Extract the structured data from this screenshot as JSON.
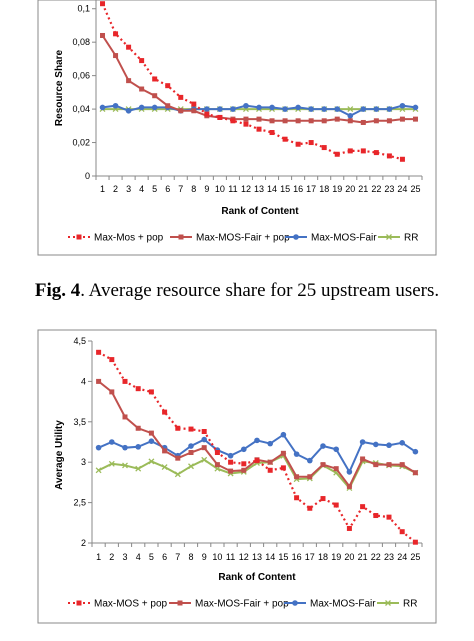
{
  "caption": {
    "label": "Fig. 4",
    "text": ". Average resource share for 25 upstream users."
  },
  "chart_data": [
    {
      "type": "line",
      "title": "",
      "xlabel": "Rank of Content",
      "ylabel": "Resource Share",
      "x": [
        1,
        2,
        3,
        4,
        5,
        6,
        7,
        8,
        9,
        10,
        11,
        12,
        13,
        14,
        15,
        16,
        17,
        18,
        19,
        20,
        21,
        22,
        23,
        24,
        25
      ],
      "ylim": [
        0,
        0.11
      ],
      "yticks": [
        "0",
        "0,02",
        "0,04",
        "0,06",
        "0,08",
        "0,1"
      ],
      "ytick_values": [
        0,
        0.02,
        0.04,
        0.06,
        0.08,
        0.1
      ],
      "grid": false,
      "legend_position": "bottom",
      "series": [
        {
          "name": "Max-Mos + pop",
          "color": "#e8262a",
          "style": "dotted",
          "marker": "square",
          "values": [
            0.103,
            0.085,
            0.077,
            0.069,
            0.058,
            0.054,
            0.047,
            0.043,
            0.037,
            0.035,
            0.033,
            0.031,
            0.028,
            0.026,
            0.022,
            0.019,
            0.02,
            0.017,
            0.013,
            0.015,
            0.015,
            0.014,
            0.012,
            0.01,
            null
          ]
        },
        {
          "name": "Max-MOS-Fair + pop",
          "color": "#c0504d",
          "style": "solid",
          "marker": "square",
          "values": [
            0.084,
            0.072,
            0.057,
            0.052,
            0.048,
            0.042,
            0.039,
            0.039,
            0.036,
            0.035,
            0.034,
            0.034,
            0.034,
            0.033,
            0.033,
            0.033,
            0.033,
            0.033,
            0.034,
            0.033,
            0.032,
            0.033,
            0.033,
            0.034,
            0.034
          ]
        },
        {
          "name": "Max-MOS-Fair",
          "color": "#4472c4",
          "style": "solid",
          "marker": "circle",
          "values": [
            0.041,
            0.042,
            0.039,
            0.041,
            0.041,
            0.041,
            0.039,
            0.04,
            0.04,
            0.04,
            0.04,
            0.042,
            0.041,
            0.041,
            0.04,
            0.041,
            0.04,
            0.04,
            0.04,
            0.036,
            0.04,
            0.04,
            0.04,
            0.042,
            0.041
          ]
        },
        {
          "name": "RR",
          "color": "#9bbb59",
          "style": "solid",
          "marker": "x",
          "values": [
            0.04,
            0.04,
            0.04,
            0.04,
            0.04,
            0.04,
            0.04,
            0.04,
            0.04,
            0.04,
            0.04,
            0.04,
            0.04,
            0.04,
            0.04,
            0.04,
            0.04,
            0.04,
            0.04,
            0.04,
            0.04,
            0.04,
            0.04,
            0.04,
            0.04
          ]
        }
      ]
    },
    {
      "type": "line",
      "title": "",
      "xlabel": "Rank of Content",
      "ylabel": "Average Utility",
      "x": [
        1,
        2,
        3,
        4,
        5,
        6,
        7,
        8,
        9,
        10,
        11,
        12,
        13,
        14,
        15,
        16,
        17,
        18,
        19,
        20,
        21,
        22,
        23,
        24,
        25
      ],
      "ylim": [
        2,
        4.5
      ],
      "yticks": [
        "2",
        "2,5",
        "3",
        "3,5",
        "4",
        "4,5"
      ],
      "ytick_values": [
        2,
        2.5,
        3,
        3.5,
        4,
        4.5
      ],
      "grid": false,
      "legend_position": "bottom",
      "series": [
        {
          "name": "Max-MOS + pop",
          "color": "#e8262a",
          "style": "dotted",
          "marker": "square",
          "values": [
            4.36,
            4.27,
            4.0,
            3.91,
            3.87,
            3.62,
            3.42,
            3.41,
            3.38,
            3.12,
            3.0,
            2.98,
            3.02,
            2.9,
            2.93,
            2.56,
            2.43,
            2.55,
            2.47,
            2.18,
            2.45,
            2.34,
            2.32,
            2.14,
            2.01
          ]
        },
        {
          "name": "Max-MOS-Fair + pop",
          "color": "#c0504d",
          "style": "solid",
          "marker": "square",
          "values": [
            4.0,
            3.87,
            3.56,
            3.42,
            3.36,
            3.14,
            3.05,
            3.12,
            3.18,
            2.97,
            2.89,
            2.9,
            3.03,
            3.0,
            3.11,
            2.82,
            2.82,
            2.97,
            2.92,
            2.7,
            3.04,
            2.97,
            2.97,
            2.97,
            2.87
          ]
        },
        {
          "name": "Max-MOS-Fair",
          "color": "#4472c4",
          "style": "solid",
          "marker": "circle",
          "values": [
            3.18,
            3.25,
            3.18,
            3.19,
            3.26,
            3.18,
            3.08,
            3.2,
            3.28,
            3.15,
            3.08,
            3.16,
            3.27,
            3.23,
            3.34,
            3.1,
            3.02,
            3.2,
            3.16,
            2.88,
            3.25,
            3.22,
            3.21,
            3.24,
            3.13
          ]
        },
        {
          "name": "RR",
          "color": "#9bbb59",
          "style": "solid",
          "marker": "x",
          "values": [
            2.9,
            2.98,
            2.96,
            2.92,
            3.01,
            2.94,
            2.85,
            2.95,
            3.03,
            2.92,
            2.86,
            2.88,
            2.99,
            3.0,
            3.08,
            2.79,
            2.8,
            2.96,
            2.87,
            2.68,
            3.01,
            2.99,
            2.96,
            2.95,
            2.87
          ]
        }
      ]
    }
  ]
}
